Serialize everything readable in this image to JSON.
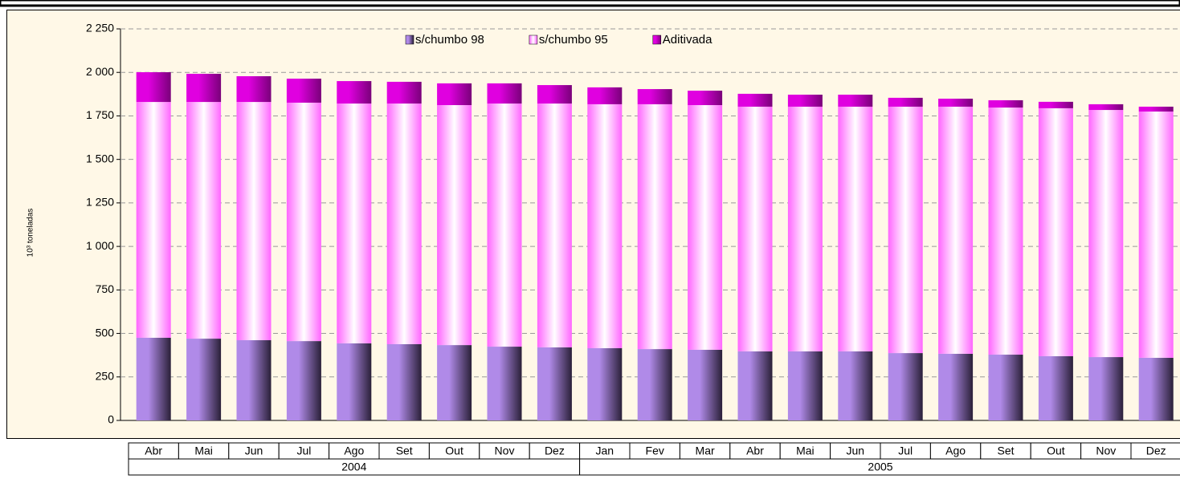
{
  "chart_data": {
    "type": "stacked_bar",
    "y_label": "10³ toneladas",
    "categories": [
      "Abr",
      "Mai",
      "Jun",
      "Jul",
      "Ago",
      "Set",
      "Out",
      "Nov",
      "Dez",
      "Jan",
      "Fev",
      "Mar",
      "Abr",
      "Mai",
      "Jun",
      "Jul",
      "Ago",
      "Set",
      "Out",
      "Nov",
      "Dez"
    ],
    "category_groups": [
      {
        "name": "2004",
        "size": 9
      },
      {
        "name": "2005",
        "size": 12
      }
    ],
    "series": [
      {
        "name": "s/chumbo 98",
        "color": "#b08ae8",
        "values": [
          475,
          470,
          461,
          456,
          443,
          438,
          433,
          424,
          420,
          415,
          410,
          406,
          397,
          397,
          397,
          387,
          383,
          378,
          369,
          364,
          360
        ]
      },
      {
        "name": "s/chumbo 95",
        "color": "#ff66ff",
        "values": [
          1355,
          1360,
          1369,
          1370,
          1378,
          1383,
          1379,
          1397,
          1401,
          1402,
          1407,
          1406,
          1406,
          1406,
          1406,
          1416,
          1420,
          1420,
          1425,
          1420,
          1415
        ]
      },
      {
        "name": "Aditivada",
        "color": "#e000e0",
        "values": [
          171,
          162,
          148,
          138,
          129,
          125,
          125,
          116,
          106,
          97,
          87,
          83,
          74,
          69,
          69,
          51,
          46,
          42,
          37,
          33,
          28
        ]
      }
    ],
    "ylim": [
      0,
      2250
    ],
    "yticks": [
      0,
      250,
      500,
      750,
      {
        "value": 1000,
        "label": "1 000"
      },
      {
        "value": 1250,
        "label": "1 250"
      },
      {
        "value": 1500,
        "label": "1 500"
      },
      {
        "value": 1750,
        "label": "1 750"
      },
      {
        "value": 2000,
        "label": "2 000"
      },
      {
        "value": 2250,
        "label": "2 250"
      }
    ],
    "grid": true,
    "legend": "top"
  }
}
